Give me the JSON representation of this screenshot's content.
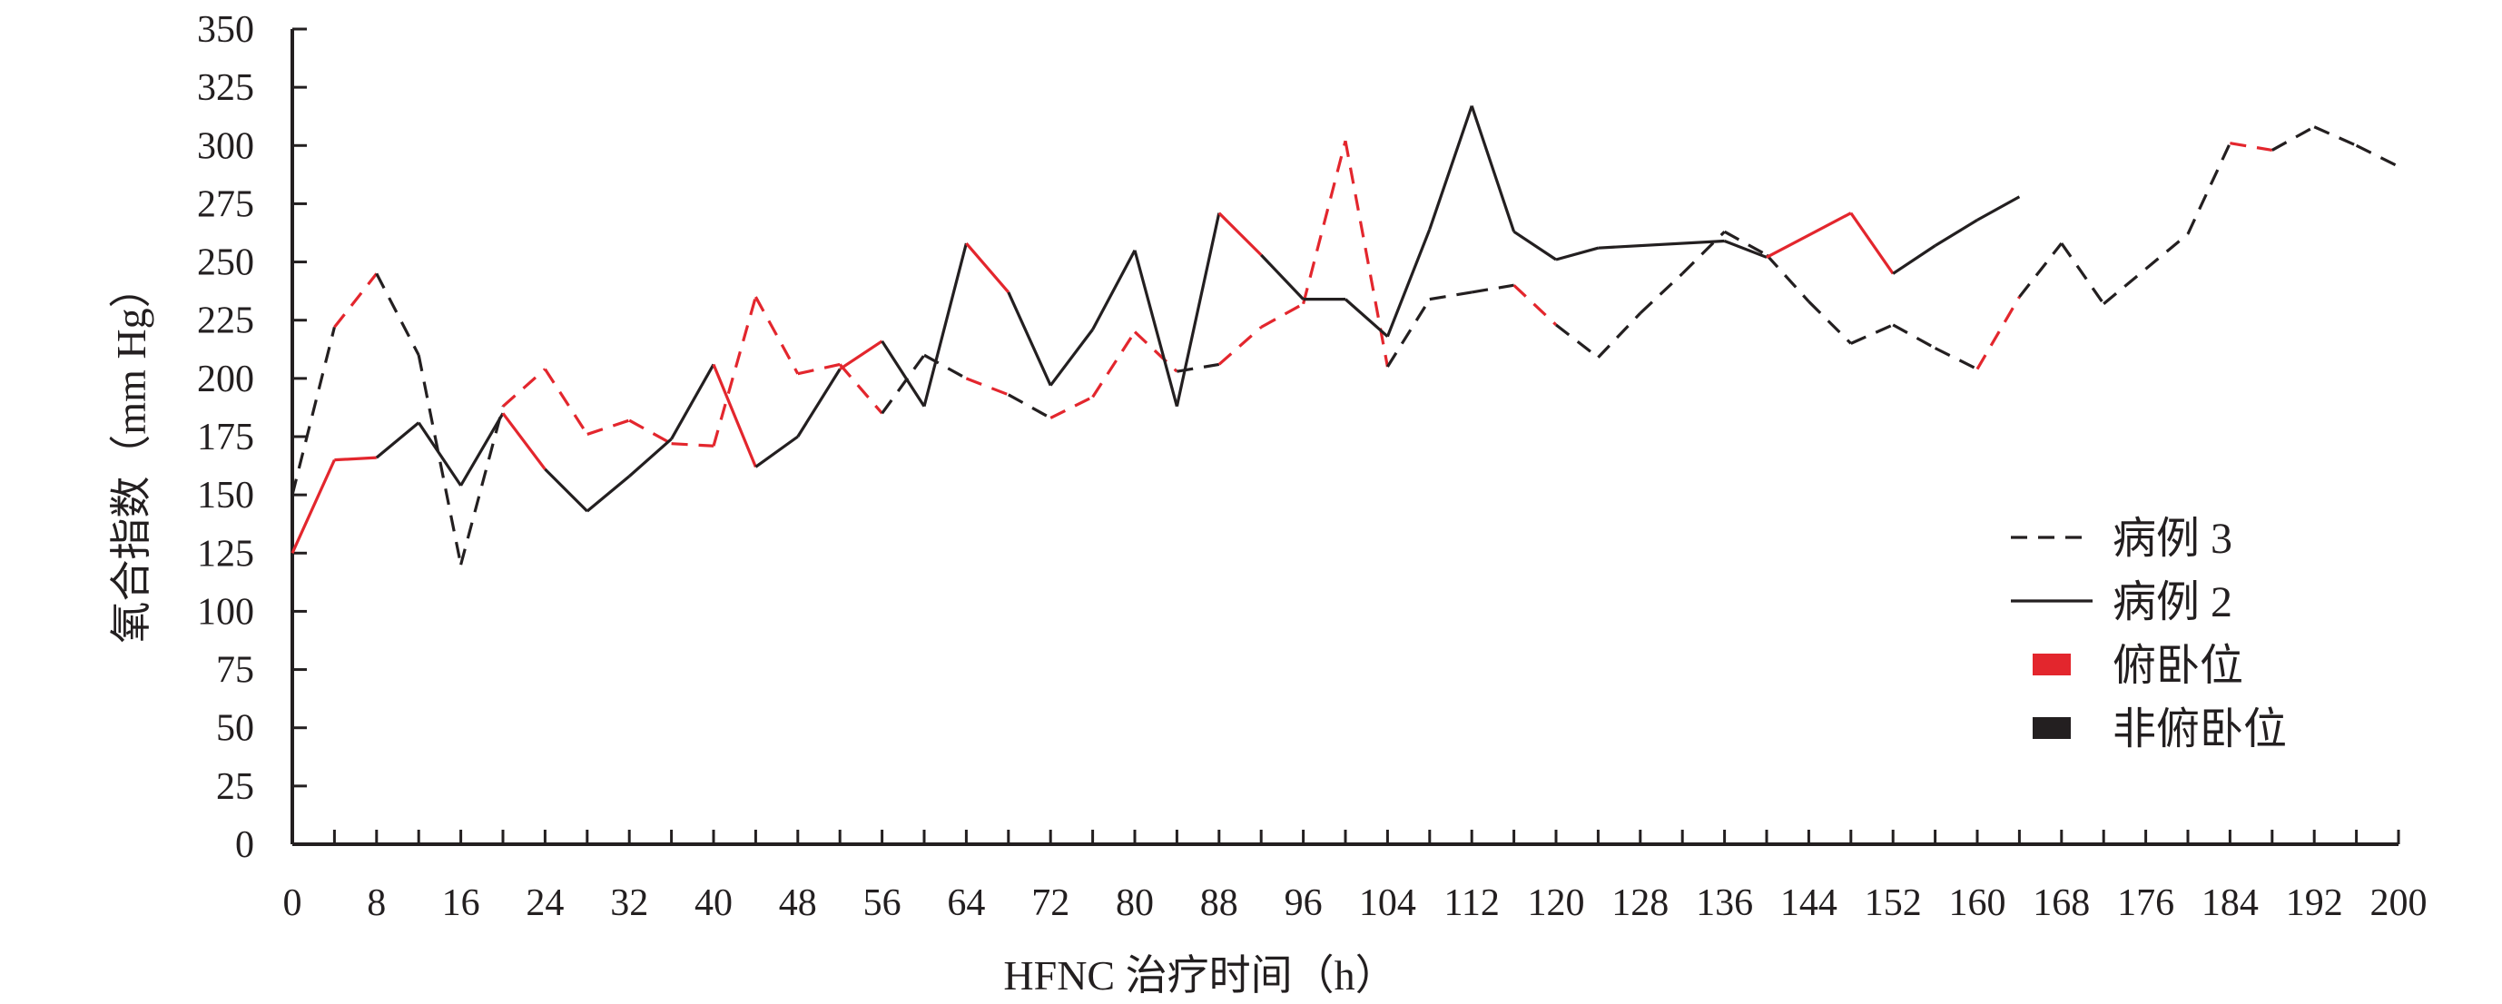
{
  "chart_data": {
    "type": "line",
    "xlabel": "HFNC 治疗时间（h）",
    "ylabel": "氧合指数（mm Hg）",
    "xlim": [
      0,
      200
    ],
    "ylim": [
      0,
      350
    ],
    "x_ticks": [
      "0",
      "8",
      "16",
      "24",
      "32",
      "40",
      "48",
      "56",
      "64",
      "72",
      "80",
      "88",
      "96",
      "104",
      "112",
      "120",
      "128",
      "136",
      "144",
      "152",
      "160",
      "168",
      "176",
      "184",
      "192",
      "200"
    ],
    "y_ticks": [
      "0",
      "25",
      "50",
      "75",
      "100",
      "125",
      "150",
      "175",
      "200",
      "225",
      "250",
      "275",
      "300",
      "325",
      "350"
    ],
    "x_minor_step": 4,
    "colors": {
      "prone": "#e3262d",
      "non_prone": "#231f20"
    },
    "legend": {
      "position": "right",
      "entries": [
        {
          "label": "病例 3",
          "kind": "dashed-line"
        },
        {
          "label": "病例 2",
          "kind": "solid-line"
        },
        {
          "label": "俯卧位",
          "kind": "swatch",
          "color": "#e3262d"
        },
        {
          "label": "非俯卧位",
          "kind": "swatch",
          "color": "#231f20"
        }
      ]
    },
    "series": [
      {
        "name": "病例 3",
        "style": "dashed",
        "x": [
          0,
          4,
          8,
          12,
          16,
          20,
          24,
          28,
          32,
          36,
          40,
          44,
          48,
          52,
          56,
          60,
          64,
          68,
          72,
          76,
          80,
          84,
          88,
          92,
          96,
          100,
          104,
          108,
          112,
          116,
          120,
          124,
          128,
          132,
          136,
          140,
          144,
          148,
          152,
          156,
          160,
          164,
          168,
          172,
          176,
          180,
          184,
          188,
          192,
          196,
          200
        ],
        "y": [
          150,
          222,
          245,
          210,
          120,
          188,
          204,
          176,
          182,
          172,
          171,
          235,
          202,
          206,
          185,
          210,
          200,
          193,
          183,
          192,
          220,
          203,
          206,
          222,
          232,
          302,
          205,
          234,
          237,
          240,
          223,
          209,
          228,
          245,
          263,
          253,
          233,
          215,
          223,
          213,
          204,
          235,
          258,
          232,
          247,
          262,
          301,
          298,
          308,
          300,
          291
        ],
        "positions": [
          "non_prone",
          "prone",
          "non_prone",
          "non_prone",
          "non_prone",
          "prone",
          "prone",
          "prone",
          "prone",
          "prone",
          "prone",
          "prone",
          "prone",
          "prone",
          "non_prone",
          "non_prone",
          "prone",
          "non_prone",
          "prone",
          "prone",
          "prone",
          "non_prone",
          "prone",
          "prone",
          "prone",
          "prone",
          "non_prone",
          "non_prone",
          "non_prone",
          "prone",
          "non_prone",
          "non_prone",
          "non_prone",
          "non_prone",
          "non_prone",
          "non_prone",
          "non_prone",
          "non_prone",
          "non_prone",
          "non_prone",
          "prone",
          "non_prone",
          "non_prone",
          "non_prone",
          "non_prone",
          "non_prone",
          "prone",
          "non_prone",
          "non_prone",
          "non_prone"
        ]
      },
      {
        "name": "病例 2",
        "style": "solid",
        "x": [
          0,
          4,
          8,
          12,
          16,
          20,
          24,
          28,
          32,
          36,
          40,
          44,
          48,
          52,
          56,
          60,
          64,
          68,
          72,
          76,
          80,
          84,
          88,
          92,
          96,
          100,
          104,
          108,
          112,
          116,
          120,
          124,
          136,
          140,
          148,
          152,
          156,
          160,
          164
        ],
        "y": [
          125,
          165,
          166,
          181,
          154,
          185,
          161,
          143,
          158,
          174,
          206,
          162,
          175,
          204,
          216,
          188,
          258,
          237,
          197,
          221,
          255,
          188,
          271,
          253,
          234,
          234,
          218,
          264,
          317,
          263,
          251,
          256,
          259,
          252,
          271,
          245,
          257,
          268,
          278
        ],
        "positions": [
          "prone",
          "prone",
          "non_prone",
          "non_prone",
          "non_prone",
          "prone",
          "non_prone",
          "non_prone",
          "non_prone",
          "non_prone",
          "prone",
          "non_prone",
          "non_prone",
          "prone",
          "non_prone",
          "non_prone",
          "prone",
          "non_prone",
          "non_prone",
          "non_prone",
          "non_prone",
          "non_prone",
          "prone",
          "non_prone",
          "non_prone",
          "non_prone",
          "non_prone",
          "non_prone",
          "non_prone",
          "non_prone",
          "non_prone",
          "non_prone",
          "non_prone",
          "prone",
          "prone",
          "non_prone",
          "non_prone",
          "non_prone"
        ]
      }
    ]
  }
}
